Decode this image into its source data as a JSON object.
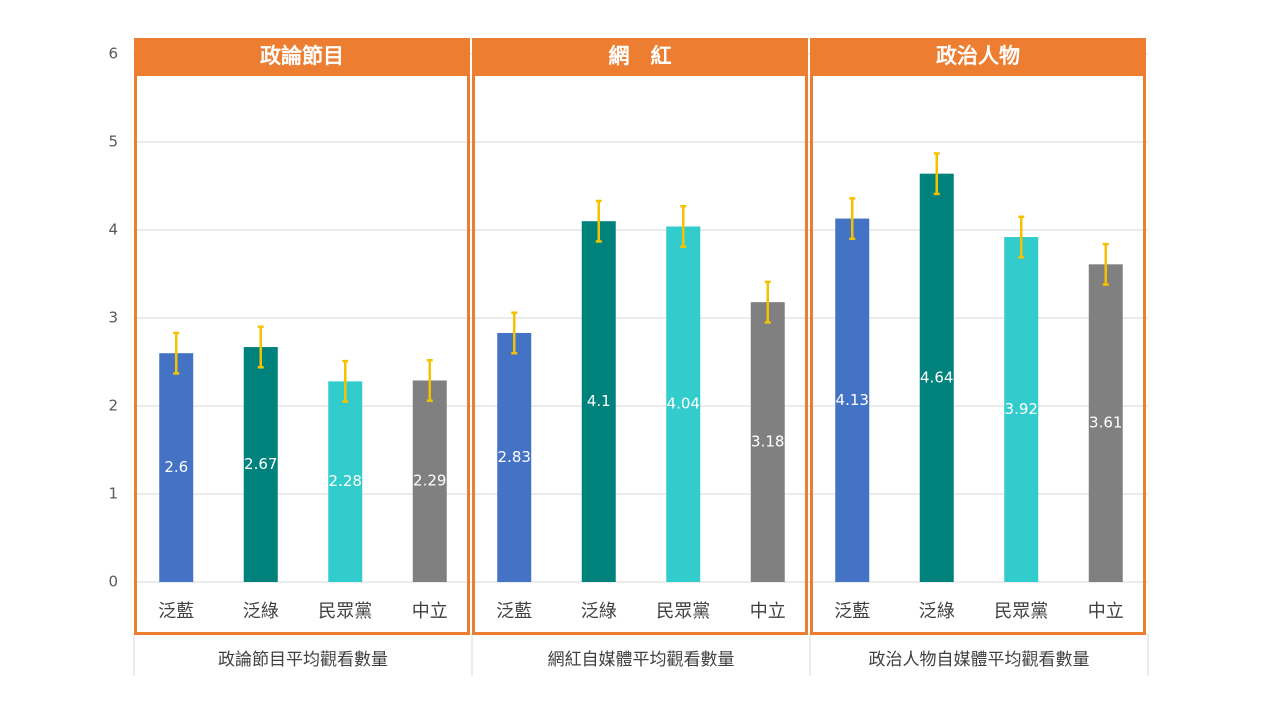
{
  "chart_data": [
    {
      "type": "bar",
      "title": "政論節目",
      "xlabel": "政論節目平均觀看數量",
      "categories": [
        "泛藍",
        "泛綠",
        "民眾黨",
        "中立"
      ],
      "values": [
        2.6,
        2.67,
        2.28,
        2.29
      ],
      "errors": [
        0.23,
        0.23,
        0.23,
        0.23
      ],
      "colors": [
        "#4472c4",
        "#00827c",
        "#33cccc",
        "#808080"
      ],
      "error_color": "#f5c200",
      "ylim": [
        0,
        6
      ],
      "yticks": [
        0,
        1,
        2,
        3,
        4,
        5,
        6
      ],
      "grid": true
    },
    {
      "type": "bar",
      "title": "網　紅",
      "xlabel": "網紅自媒體平均觀看數量",
      "categories": [
        "泛藍",
        "泛綠",
        "民眾黨",
        "中立"
      ],
      "values": [
        2.83,
        4.1,
        4.04,
        3.18
      ],
      "errors": [
        0.23,
        0.23,
        0.23,
        0.23
      ],
      "colors": [
        "#4472c4",
        "#00827c",
        "#33cccc",
        "#808080"
      ],
      "error_color": "#f5c200",
      "ylim": [
        0,
        6
      ],
      "yticks": [
        0,
        1,
        2,
        3,
        4,
        5,
        6
      ],
      "grid": true
    },
    {
      "type": "bar",
      "title": "政治人物",
      "xlabel": "政治人物自媒體平均觀看數量",
      "categories": [
        "泛藍",
        "泛綠",
        "民眾黨",
        "中立"
      ],
      "values": [
        4.13,
        4.64,
        3.92,
        3.61
      ],
      "errors": [
        0.23,
        0.23,
        0.23,
        0.23
      ],
      "colors": [
        "#4472c4",
        "#00827c",
        "#33cccc",
        "#808080"
      ],
      "error_color": "#f5c200",
      "ylim": [
        0,
        6
      ],
      "yticks": [
        0,
        1,
        2,
        3,
        4,
        5,
        6
      ],
      "grid": true
    }
  ]
}
